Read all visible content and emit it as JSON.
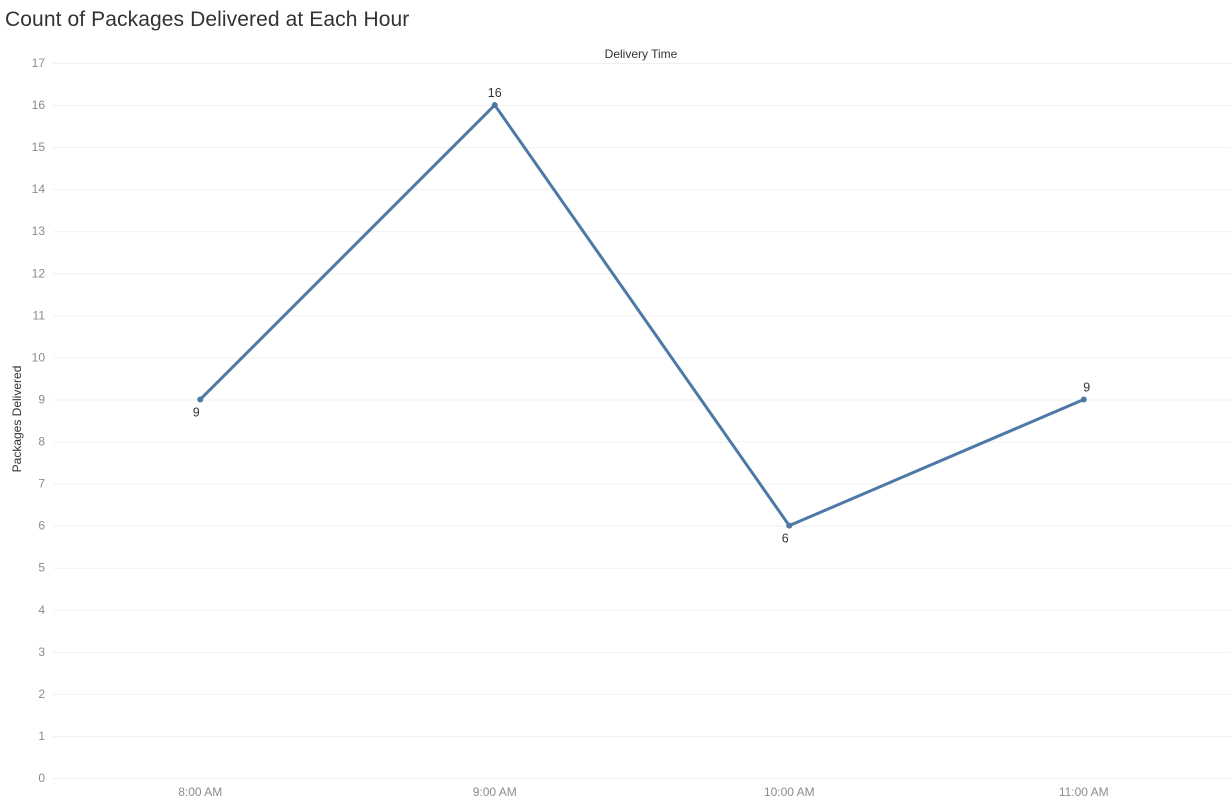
{
  "chart_data": {
    "type": "line",
    "title": "Count of Packages Delivered at Each Hour",
    "x_header": "Delivery Time",
    "ylabel": "Packages Delivered",
    "categories": [
      "8:00 AM",
      "9:00 AM",
      "10:00 AM",
      "11:00 AM"
    ],
    "series": [
      {
        "values": [
          9,
          16,
          6,
          9
        ]
      }
    ],
    "data_labels": [
      "9",
      "16",
      "6",
      "9"
    ],
    "data_label_positions": [
      "below",
      "above",
      "below",
      "above"
    ],
    "ylim": [
      0,
      17
    ],
    "y_ticks": [
      "0",
      "1",
      "2",
      "3",
      "4",
      "5",
      "6",
      "7",
      "8",
      "9",
      "10",
      "11",
      "12",
      "13",
      "14",
      "15",
      "16",
      "17"
    ],
    "grid": true,
    "line_color": "#4e79a7"
  }
}
